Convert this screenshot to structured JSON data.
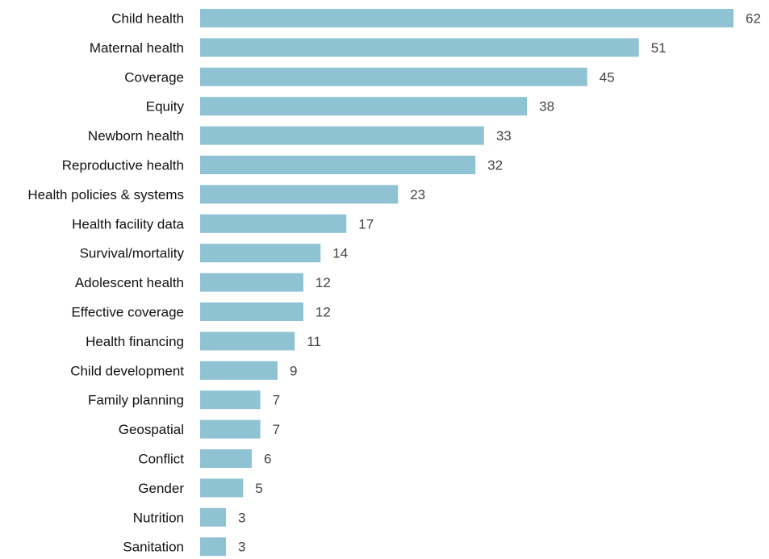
{
  "chart_data": {
    "type": "bar",
    "orientation": "horizontal",
    "categories": [
      "Child health",
      "Maternal health",
      "Coverage",
      "Equity",
      "Newborn health",
      "Reproductive health",
      "Health policies & systems",
      "Health facility data",
      "Survival/mortality",
      "Adolescent health",
      "Effective coverage",
      "Health financing",
      "Child development",
      "Family planning",
      "Geospatial",
      "Conflict",
      "Gender",
      "Nutrition",
      "Sanitation"
    ],
    "values": [
      62,
      51,
      45,
      38,
      33,
      32,
      23,
      17,
      14,
      12,
      12,
      11,
      9,
      7,
      7,
      6,
      5,
      3,
      3
    ],
    "title": "",
    "xlabel": "",
    "ylabel": "",
    "xlim": [
      0,
      62
    ],
    "grid": false,
    "legend": "none",
    "bar_color": "#8fc3d4",
    "data_labels": true
  }
}
